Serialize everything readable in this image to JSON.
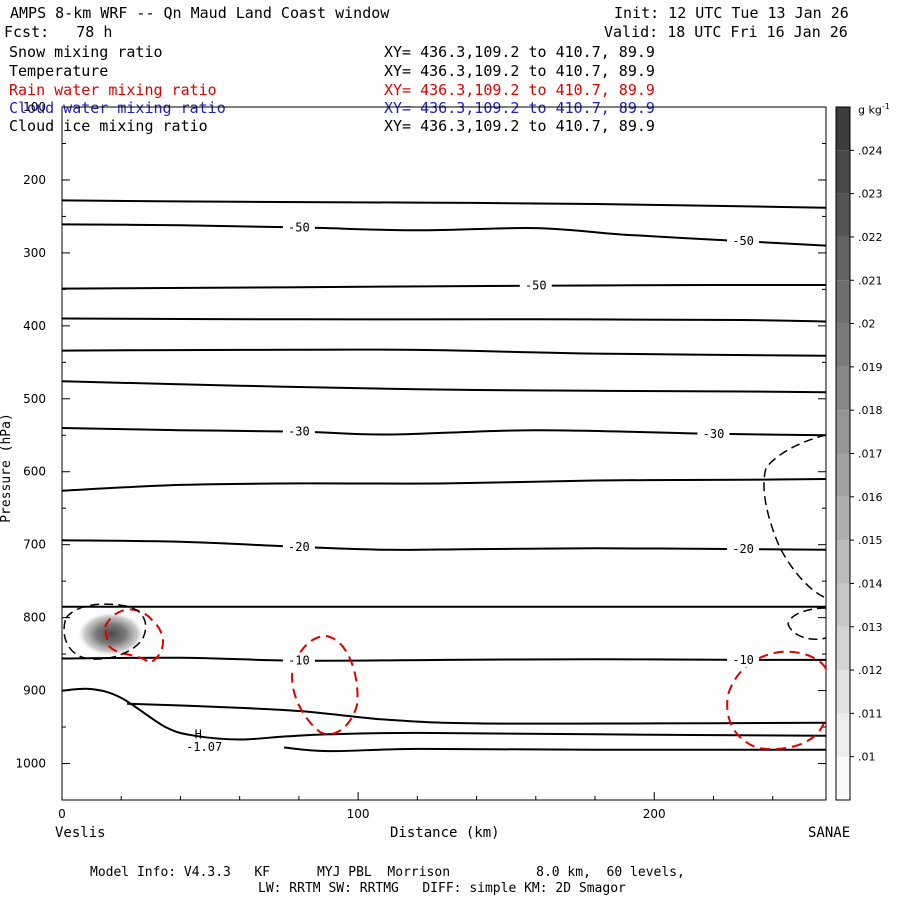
{
  "header": {
    "title_left": "AMPS 8-km WRF -- Qn Maud Land Coast window",
    "init": "Init: 12 UTC Tue 13 Jan 26",
    "fcst": "Fcst:   78 h",
    "valid": "Valid: 18 UTC Fri 16 Jan 26"
  },
  "fields": [
    {
      "name": "Snow mixing ratio",
      "xy": "XY= 436.3,109.2 to 410.7, 89.9",
      "color": "#000000"
    },
    {
      "name": "Temperature",
      "xy": "XY= 436.3,109.2 to 410.7, 89.9",
      "color": "#000000"
    },
    {
      "name": "Rain water mixing ratio",
      "xy": "XY= 436.3,109.2 to 410.7, 89.9",
      "color": "#e00000"
    },
    {
      "name": "Cloud water mixing ratio",
      "xy": "XY= 436.3,109.2 to 410.7, 89.9",
      "color": "#2020c0"
    },
    {
      "name": "Cloud ice mixing ratio",
      "xy": "XY= 436.3,109.2 to 410.7, 89.9",
      "color": "#000000"
    }
  ],
  "footer": {
    "line1": "Model Info: V4.3.3   KF      MYJ PBL  Morrison           8.0 km,  60 levels,",
    "line2": "LW: RRTM SW: RRTMG   DIFF: simple KM: 2D Smagor"
  },
  "chart_data": {
    "type": "cross-section contour",
    "xlabel": "Distance (km)",
    "ylabel": "Pressure (hPa)",
    "x_start_label": "Veslis",
    "x_end_label": "SANAE",
    "xlim": [
      0,
      258
    ],
    "ylim": [
      1050,
      100
    ],
    "x_ticks": [
      0,
      100,
      200
    ],
    "y_ticks": [
      100,
      200,
      300,
      400,
      500,
      600,
      700,
      800,
      900,
      1000
    ],
    "colorbar": {
      "unit": "g kg",
      "unit_exp": "-1",
      "levels": [
        ".01",
        ".011",
        ".012",
        ".013",
        ".014",
        ".015",
        ".016",
        ".017",
        ".018",
        ".019",
        ".02",
        ".021",
        ".022",
        ".023",
        ".024"
      ]
    },
    "temperature_isotherms": [
      {
        "points": [
          [
            0,
            228
          ],
          [
            60,
            230
          ],
          [
            120,
            231
          ],
          [
            180,
            233
          ],
          [
            258,
            238
          ]
        ]
      },
      {
        "label": "-50",
        "label2": "-50",
        "points": [
          [
            0,
            261
          ],
          [
            40,
            262
          ],
          [
            80,
            265
          ],
          [
            120,
            269
          ],
          [
            160,
            266
          ],
          [
            190,
            275
          ],
          [
            230,
            284
          ],
          [
            258,
            290
          ]
        ]
      },
      {
        "label": "-50",
        "points": [
          [
            0,
            349
          ],
          [
            80,
            347
          ],
          [
            160,
            345
          ],
          [
            220,
            344
          ],
          [
            258,
            344
          ]
        ]
      },
      {
        "points": [
          [
            0,
            390
          ],
          [
            80,
            391
          ],
          [
            160,
            391
          ],
          [
            230,
            392
          ],
          [
            258,
            394
          ]
        ]
      },
      {
        "points": [
          [
            0,
            434
          ],
          [
            60,
            433
          ],
          [
            120,
            433
          ],
          [
            180,
            438
          ],
          [
            258,
            441
          ]
        ]
      },
      {
        "points": [
          [
            0,
            476
          ],
          [
            60,
            482
          ],
          [
            120,
            487
          ],
          [
            180,
            489
          ],
          [
            230,
            490
          ],
          [
            258,
            491
          ]
        ]
      },
      {
        "label": "-30",
        "label2": "-30",
        "points": [
          [
            0,
            540
          ],
          [
            40,
            543
          ],
          [
            80,
            545
          ],
          [
            110,
            549
          ],
          [
            160,
            543
          ],
          [
            220,
            548
          ],
          [
            258,
            550
          ]
        ]
      },
      {
        "points": [
          [
            0,
            626
          ],
          [
            40,
            618
          ],
          [
            80,
            616
          ],
          [
            130,
            616
          ],
          [
            180,
            612
          ],
          [
            230,
            611
          ],
          [
            258,
            610
          ]
        ]
      },
      {
        "label": "-20",
        "label2": "-20",
        "points": [
          [
            0,
            694
          ],
          [
            40,
            696
          ],
          [
            80,
            703
          ],
          [
            110,
            707
          ],
          [
            140,
            706
          ],
          [
            180,
            705
          ],
          [
            230,
            706
          ],
          [
            258,
            707
          ]
        ]
      },
      {
        "points": [
          [
            0,
            785
          ],
          [
            60,
            785
          ],
          [
            120,
            785
          ],
          [
            180,
            785
          ],
          [
            258,
            785
          ]
        ]
      },
      {
        "label": "-10",
        "label2": "-10",
        "points": [
          [
            0,
            856
          ],
          [
            40,
            855
          ],
          [
            80,
            859
          ],
          [
            130,
            858
          ],
          [
            180,
            857
          ],
          [
            230,
            858
          ],
          [
            258,
            858
          ]
        ]
      },
      {
        "points": [
          [
            0,
            900
          ],
          [
            10,
            898
          ],
          [
            20,
            910
          ],
          [
            35,
            950
          ],
          [
            45,
            962
          ],
          [
            60,
            967
          ],
          [
            75,
            963
          ],
          [
            90,
            960
          ],
          [
            120,
            958
          ],
          [
            180,
            960
          ],
          [
            258,
            962
          ]
        ]
      },
      {
        "points": [
          [
            22,
            918
          ],
          [
            50,
            922
          ],
          [
            80,
            928
          ],
          [
            110,
            940
          ],
          [
            140,
            945
          ],
          [
            200,
            945
          ],
          [
            258,
            944
          ]
        ]
      },
      {
        "points": [
          [
            75,
            978
          ],
          [
            90,
            983
          ],
          [
            120,
            980
          ],
          [
            180,
            981
          ],
          [
            258,
            981
          ]
        ]
      }
    ],
    "labels": [
      {
        "text": "H",
        "x": 46,
        "y": 966
      },
      {
        "text": "-1.07",
        "x": 48,
        "y": 983
      }
    ]
  }
}
